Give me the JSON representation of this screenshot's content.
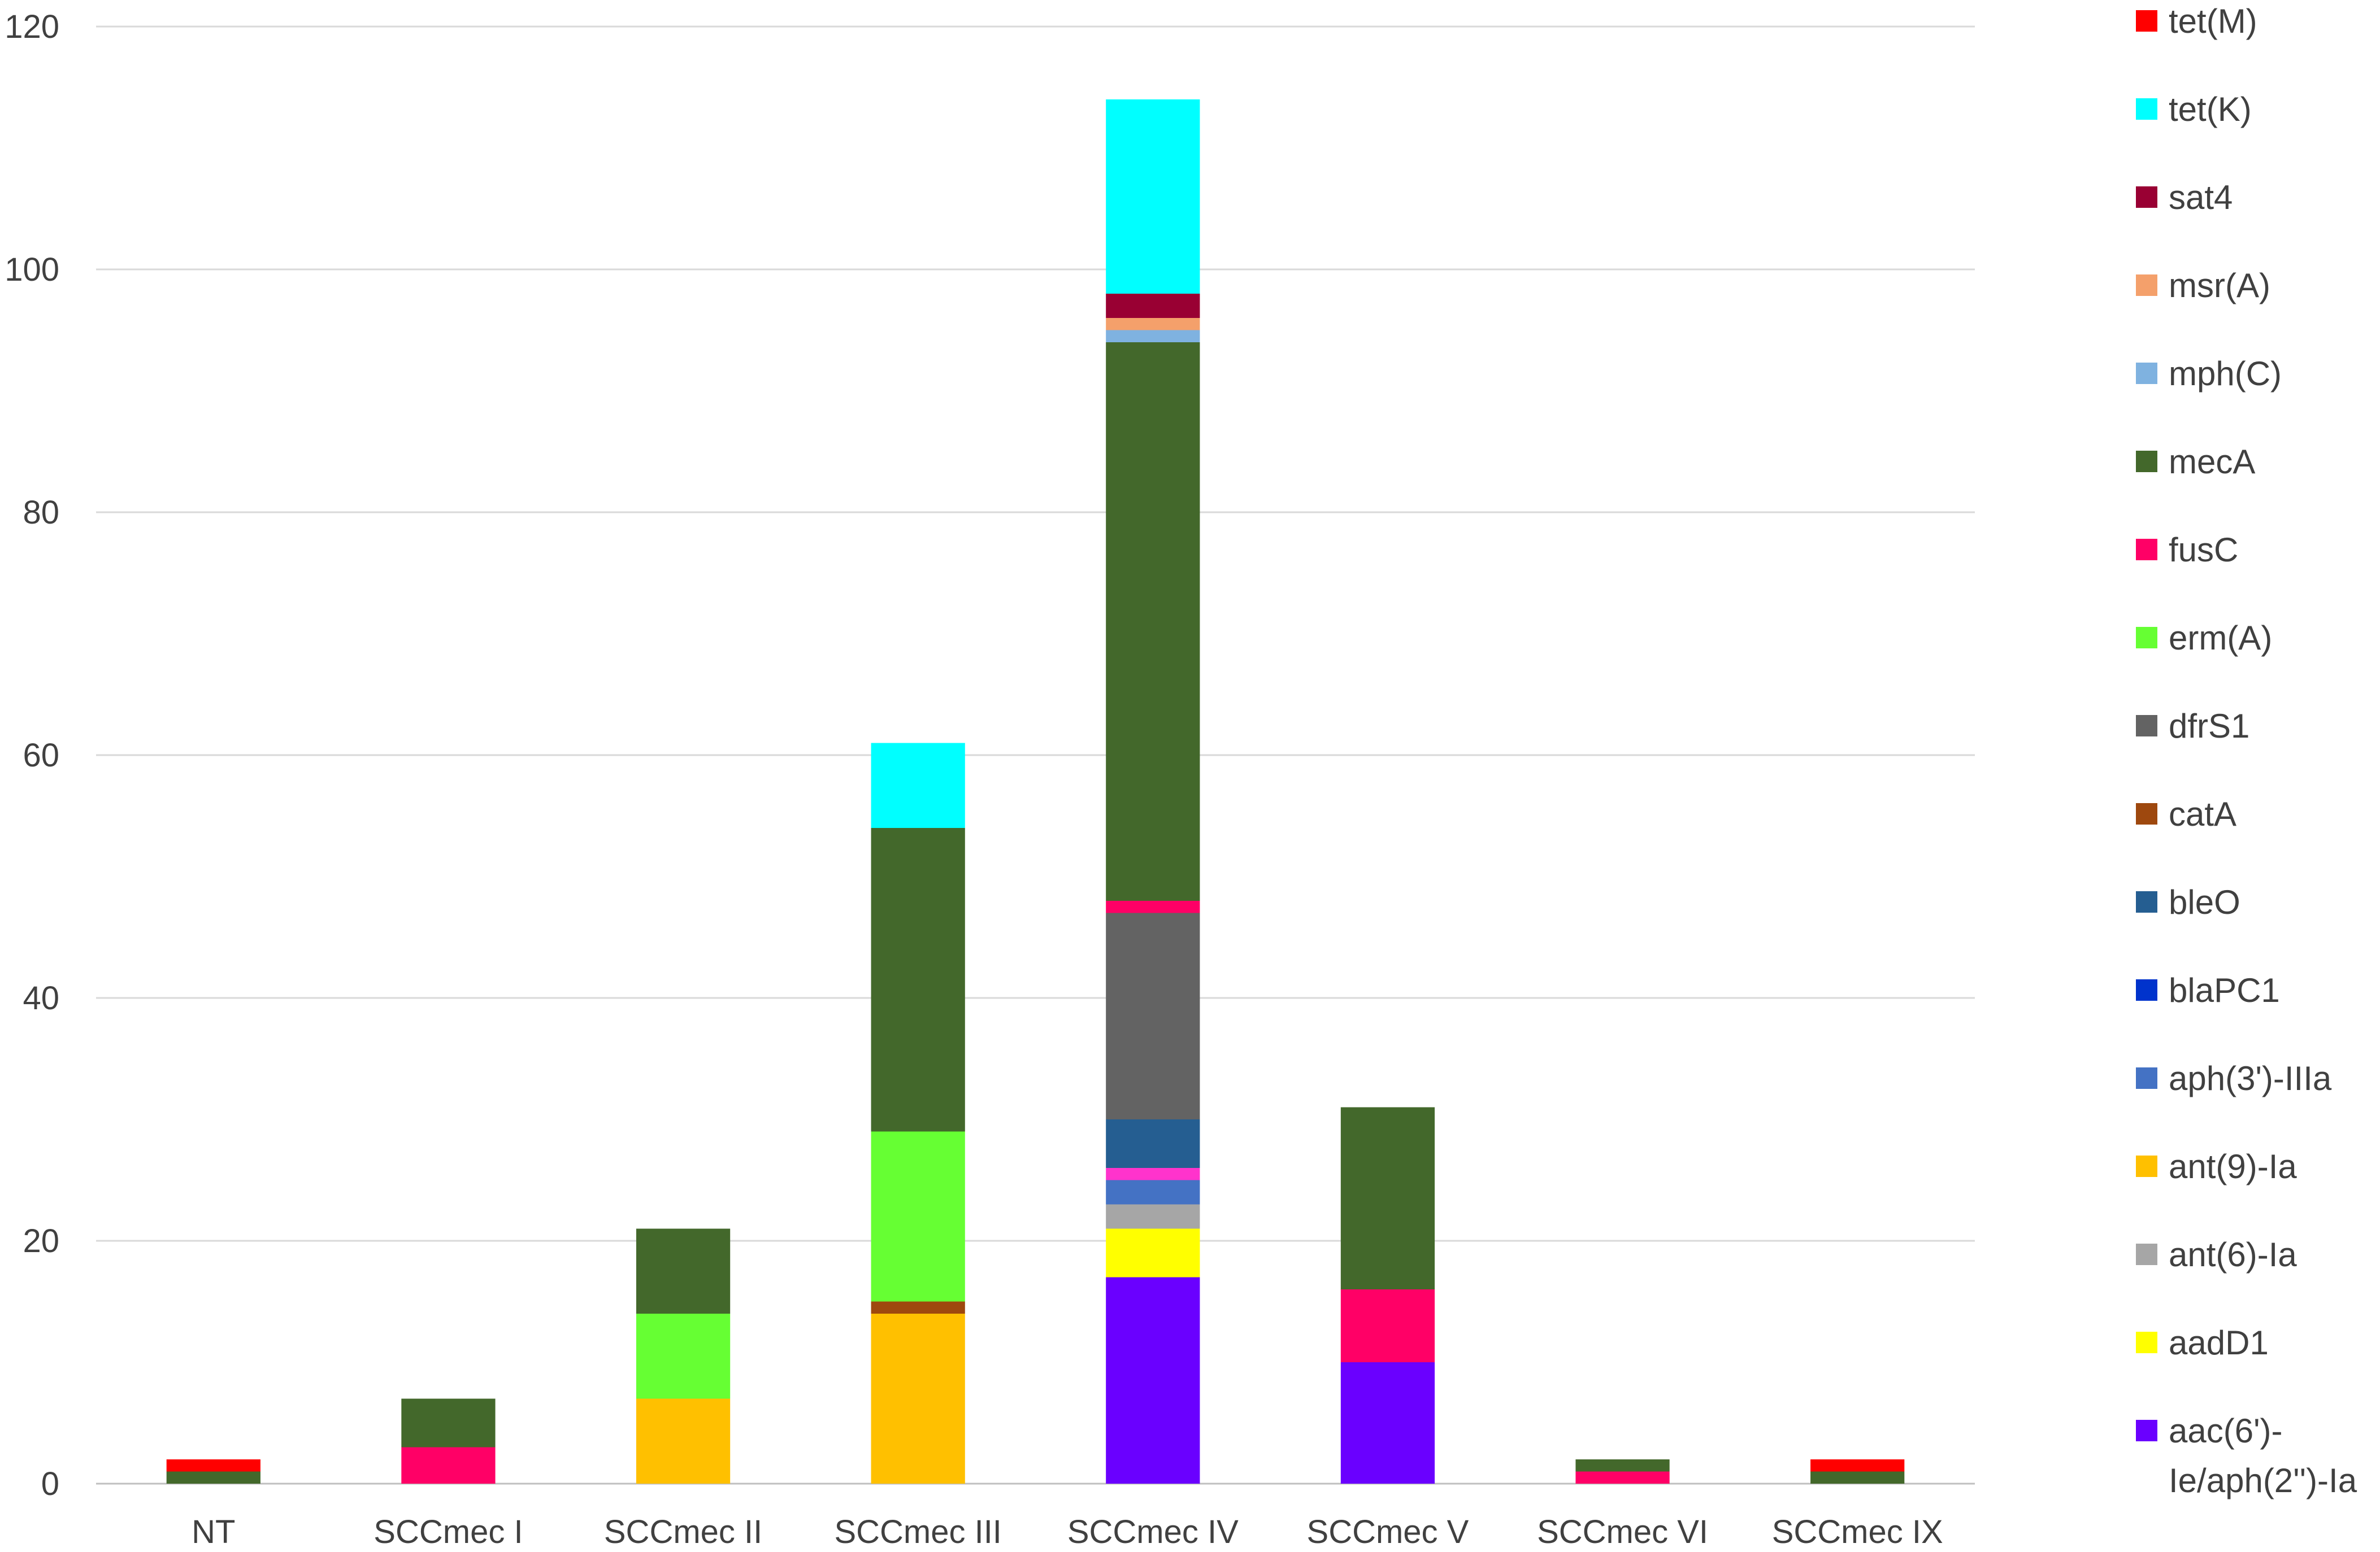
{
  "chart_data": {
    "type": "bar",
    "stacked": true,
    "title": "",
    "xlabel": "",
    "ylabel": "",
    "ylim": [
      0,
      120
    ],
    "yticks": [
      0,
      20,
      40,
      60,
      80,
      100,
      120
    ],
    "grid": true,
    "legend_position": "right",
    "categories": [
      "NT",
      "SCCmec I",
      "SCCmec II",
      "SCCmec III",
      "SCCmec IV",
      "SCCmec V",
      "SCCmec VI",
      "SCCmec IX"
    ],
    "series": [
      {
        "name": "aac(6')-Ie/aph(2'')-Ia",
        "legend_lines": [
          "aac(6')-",
          "Ie/aph(2'')-Ia"
        ],
        "color": "#6A00FF",
        "values": [
          0,
          0,
          0,
          0,
          17,
          10,
          0,
          0
        ]
      },
      {
        "name": "aadD1",
        "color": "#FFFF00",
        "values": [
          0,
          0,
          0,
          0,
          4,
          0,
          0,
          0
        ]
      },
      {
        "name": "ant(6)-Ia",
        "color": "#A6A6A6",
        "values": [
          0,
          0,
          0,
          0,
          2,
          0,
          0,
          0
        ]
      },
      {
        "name": "ant(9)-Ia",
        "color": "#FFC000",
        "values": [
          0,
          0,
          7,
          14,
          0,
          0,
          0,
          0
        ]
      },
      {
        "name": "aph(3')-IIIa",
        "color": "#4472C4",
        "values": [
          0,
          0,
          0,
          0,
          2,
          0,
          0,
          0
        ]
      },
      {
        "name": "",
        "color": "#FF33CC",
        "values": [
          0,
          0,
          0,
          0,
          1,
          0,
          0,
          0
        ]
      },
      {
        "name": "blaPC1",
        "color": "#0033CC",
        "values": [
          0,
          0,
          0,
          0,
          0,
          0,
          0,
          0
        ]
      },
      {
        "name": "bleO",
        "color": "#255E91",
        "values": [
          0,
          0,
          0,
          0,
          4,
          0,
          0,
          0
        ]
      },
      {
        "name": "catA",
        "color": "#9E480E",
        "values": [
          0,
          0,
          0,
          1,
          0,
          0,
          0,
          0
        ]
      },
      {
        "name": "dfrS1",
        "color": "#636363",
        "values": [
          0,
          0,
          0,
          0,
          17,
          0,
          0,
          0
        ]
      },
      {
        "name": "erm(A)",
        "color": "#66FF33",
        "values": [
          0,
          0,
          7,
          14,
          0,
          0,
          0,
          0
        ]
      },
      {
        "name": "fusC",
        "color": "#FF0066",
        "values": [
          0,
          3,
          0,
          0,
          1,
          6,
          1,
          0
        ]
      },
      {
        "name": "mecA",
        "color": "#43682B",
        "values": [
          1,
          4,
          7,
          25,
          46,
          15,
          1,
          1
        ]
      },
      {
        "name": "mph(C)",
        "color": "#7FB2E0",
        "values": [
          0,
          0,
          0,
          0,
          1,
          0,
          0,
          0
        ]
      },
      {
        "name": "msr(A)",
        "color": "#F4A06B",
        "values": [
          0,
          0,
          0,
          0,
          1,
          0,
          0,
          0
        ]
      },
      {
        "name": "sat4",
        "color": "#990033",
        "values": [
          0,
          0,
          0,
          0,
          2,
          0,
          0,
          0
        ]
      },
      {
        "name": "tet(K)",
        "color": "#00FFFF",
        "values": [
          0,
          0,
          0,
          7,
          16,
          0,
          0,
          0
        ]
      },
      {
        "name": "tet(M)",
        "color": "#FF0000",
        "values": [
          1,
          0,
          0,
          0,
          0,
          0,
          0,
          1
        ]
      }
    ]
  }
}
